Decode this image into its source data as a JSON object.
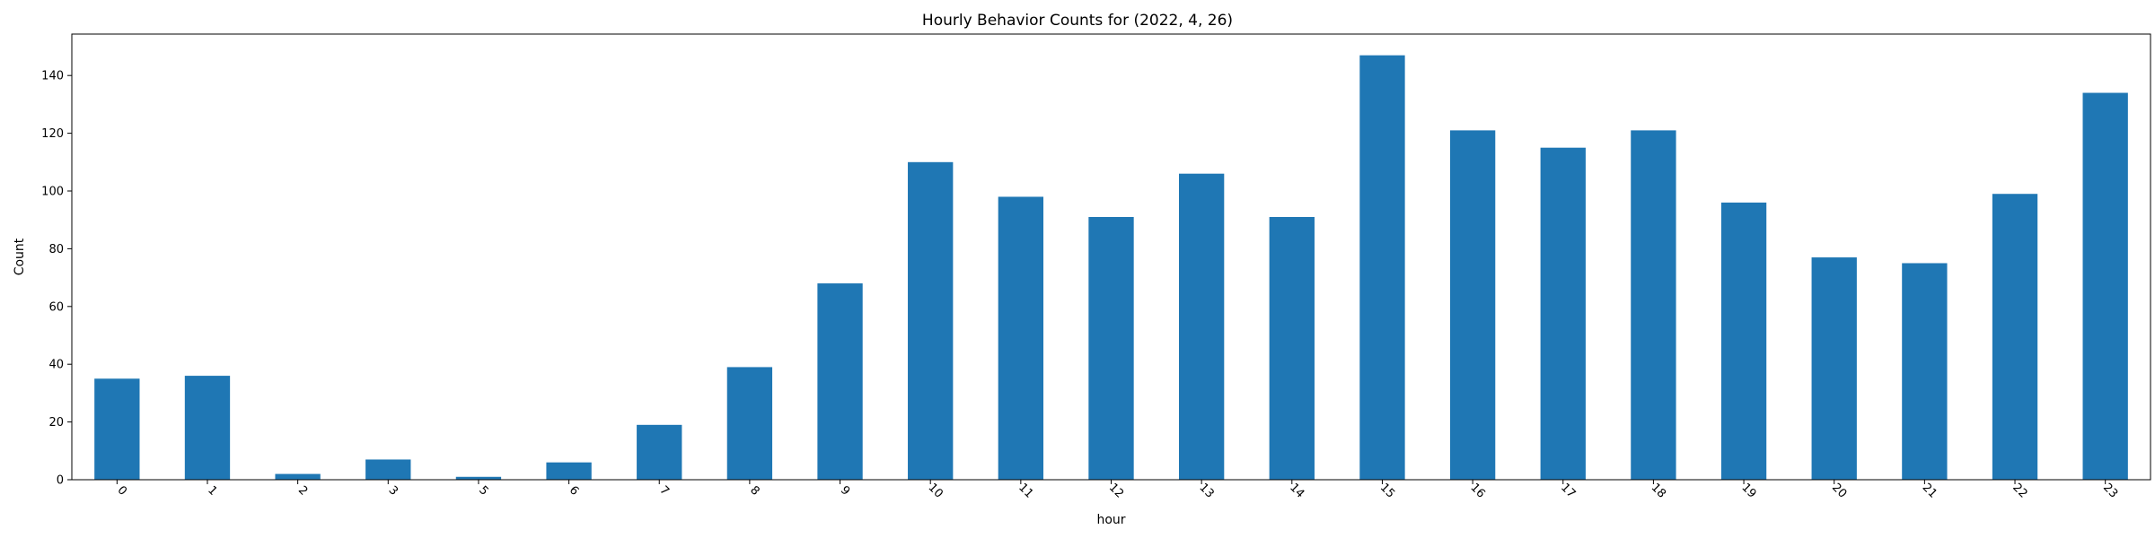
{
  "chart_data": {
    "type": "bar",
    "title": "Hourly Behavior Counts for (2022, 4, 26)",
    "xlabel": "hour",
    "ylabel": "Count",
    "categories": [
      "0",
      "1",
      "2",
      "3",
      "5",
      "6",
      "7",
      "8",
      "9",
      "10",
      "11",
      "12",
      "13",
      "14",
      "15",
      "16",
      "17",
      "18",
      "19",
      "20",
      "21",
      "22",
      "23"
    ],
    "values": [
      35,
      36,
      2,
      7,
      1,
      6,
      19,
      39,
      68,
      110,
      98,
      91,
      106,
      91,
      147,
      121,
      115,
      121,
      96,
      77,
      75,
      99,
      134
    ],
    "ylim": [
      0,
      154.35
    ],
    "yticks": [
      0,
      20,
      40,
      60,
      80,
      100,
      120,
      140
    ],
    "xtick_rotation": 45,
    "grid": false,
    "legend": "none",
    "bar_color": "#1f77b4"
  }
}
